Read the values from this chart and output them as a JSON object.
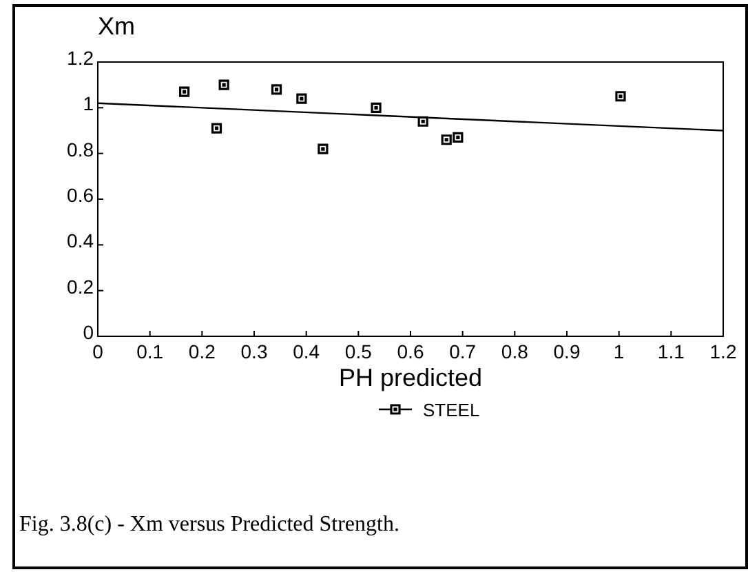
{
  "chart_data": {
    "type": "scatter",
    "xlabel": "PH predicted",
    "ylabel": "Xm",
    "xlim": [
      0,
      1.2
    ],
    "xticks": [
      0,
      0.1,
      0.2,
      0.3,
      0.4,
      0.5,
      0.6,
      0.7,
      0.8,
      0.9,
      1,
      1.1,
      1.2
    ],
    "ylim": [
      0,
      1.2
    ],
    "yticks": [
      0,
      0.2,
      0.4,
      0.6,
      0.8,
      1,
      1.2
    ],
    "grid": false,
    "legend": "bottom",
    "marker": "square",
    "series": [
      {
        "name": "STEEL",
        "color": "#000000",
        "x": [
          0.166,
          0.228,
          0.242,
          0.343,
          0.391,
          0.432,
          0.534,
          0.624,
          0.669,
          0.691,
          1.003
        ],
        "values": [
          1.07,
          0.91,
          1.1,
          1.08,
          1.04,
          0.82,
          1.0,
          0.94,
          0.86,
          0.87,
          1.05
        ]
      },
      {
        "type": "line",
        "color": "#000000",
        "marker": "none",
        "line_style": "solid",
        "x": [
          0,
          1.2
        ],
        "values": [
          1.02,
          0.9
        ]
      }
    ],
    "annotations": [
      "Fig. 3.8(c) - Xm versus Predicted Strength."
    ]
  }
}
